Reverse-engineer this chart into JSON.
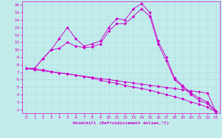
{
  "bg_color": "#c2ecec",
  "grid_color": "#aadddd",
  "line_color": "#cc00cc",
  "xmin": 0,
  "xmax": 23,
  "ymin": 2,
  "ymax": 16,
  "xlabel": "Windchill (Refroidissement éolien,°C)",
  "series1_y": [
    7.5,
    7.5,
    8.8,
    10.0,
    11.5,
    13.0,
    11.5,
    10.5,
    10.8,
    11.2,
    13.0,
    14.2,
    14.0,
    15.5,
    16.2,
    15.0,
    11.2,
    9.0,
    6.2,
    5.2,
    4.2,
    3.5,
    3.0,
    1.8
  ],
  "series2_y": [
    7.5,
    7.5,
    8.8,
    10.0,
    10.2,
    11.0,
    10.5,
    10.3,
    10.4,
    10.8,
    12.5,
    13.5,
    13.5,
    14.5,
    15.5,
    14.5,
    10.8,
    8.5,
    6.0,
    5.0,
    4.0,
    3.2,
    2.8,
    1.7
  ],
  "series3_y": [
    7.5,
    7.4,
    7.3,
    7.1,
    6.9,
    6.8,
    6.6,
    6.4,
    6.2,
    5.9,
    5.7,
    5.5,
    5.2,
    5.0,
    4.8,
    4.6,
    4.3,
    4.0,
    3.7,
    3.4,
    3.0,
    2.7,
    2.3,
    1.7
  ],
  "series4_y": [
    7.5,
    7.35,
    7.2,
    7.05,
    6.9,
    6.75,
    6.6,
    6.45,
    6.3,
    6.15,
    6.0,
    5.85,
    5.7,
    5.55,
    5.4,
    5.25,
    5.1,
    4.95,
    4.8,
    4.65,
    4.5,
    4.35,
    4.2,
    1.8
  ]
}
